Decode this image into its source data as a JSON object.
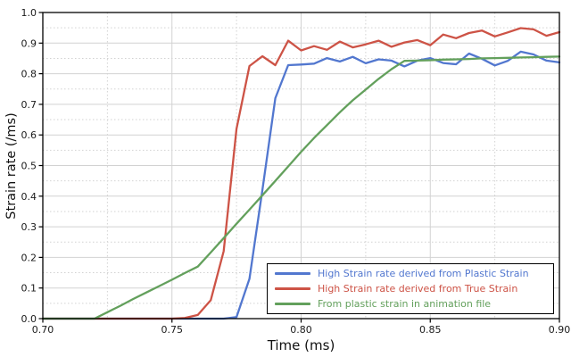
{
  "chart_data": {
    "type": "line",
    "xlabel": "Time (ms)",
    "ylabel": "Strain rate (/ms)",
    "xlim": [
      0.7,
      0.9
    ],
    "ylim": [
      0.0,
      1.0
    ],
    "x_ticks": [
      "0.70",
      "0.75",
      "0.80",
      "0.85",
      "0.90"
    ],
    "x_minor_ticks": [
      0.725,
      0.775,
      0.825,
      0.875
    ],
    "y_ticks": [
      "0.0",
      "0.1",
      "0.2",
      "0.3",
      "0.4",
      "0.5",
      "0.6",
      "0.7",
      "0.8",
      "0.9",
      "1.0"
    ],
    "y_minor_ticks": [
      0.05,
      0.15,
      0.25,
      0.35,
      0.45,
      0.55,
      0.65,
      0.75,
      0.85,
      0.95
    ],
    "grid": "major-solid-minor-dotted",
    "legend_position": "bottom-right",
    "colors": {
      "grid": "#d2d2d2",
      "frame": "#000000",
      "text": "#1a1a1a"
    },
    "series": [
      {
        "name": "High Strain rate derived from Plastic Strain",
        "color": "#5277cf",
        "data": [
          [
            0.7,
            0
          ],
          [
            0.705,
            0
          ],
          [
            0.71,
            0
          ],
          [
            0.715,
            0
          ],
          [
            0.72,
            0
          ],
          [
            0.725,
            0
          ],
          [
            0.73,
            0
          ],
          [
            0.735,
            0
          ],
          [
            0.74,
            0
          ],
          [
            0.745,
            0
          ],
          [
            0.75,
            0
          ],
          [
            0.755,
            0
          ],
          [
            0.76,
            0
          ],
          [
            0.765,
            0
          ],
          [
            0.77,
            0
          ],
          [
            0.775,
            0.005
          ],
          [
            0.78,
            0.13
          ],
          [
            0.785,
            0.42
          ],
          [
            0.79,
            0.72
          ],
          [
            0.795,
            0.828
          ],
          [
            0.8,
            0.83
          ],
          [
            0.805,
            0.833
          ],
          [
            0.81,
            0.851
          ],
          [
            0.815,
            0.84
          ],
          [
            0.82,
            0.855
          ],
          [
            0.825,
            0.834
          ],
          [
            0.83,
            0.847
          ],
          [
            0.835,
            0.843
          ],
          [
            0.84,
            0.824
          ],
          [
            0.845,
            0.843
          ],
          [
            0.85,
            0.851
          ],
          [
            0.855,
            0.835
          ],
          [
            0.86,
            0.831
          ],
          [
            0.865,
            0.866
          ],
          [
            0.87,
            0.849
          ],
          [
            0.875,
            0.827
          ],
          [
            0.88,
            0.842
          ],
          [
            0.885,
            0.872
          ],
          [
            0.89,
            0.863
          ],
          [
            0.895,
            0.843
          ],
          [
            0.9,
            0.837
          ]
        ]
      },
      {
        "name": "High Strain rate derived from True Strain",
        "color": "#cd5346",
        "data": [
          [
            0.7,
            0
          ],
          [
            0.705,
            0
          ],
          [
            0.71,
            0
          ],
          [
            0.715,
            0
          ],
          [
            0.72,
            0
          ],
          [
            0.725,
            0
          ],
          [
            0.73,
            0
          ],
          [
            0.735,
            0
          ],
          [
            0.74,
            0
          ],
          [
            0.745,
            0
          ],
          [
            0.75,
            0
          ],
          [
            0.755,
            0.002
          ],
          [
            0.76,
            0.012
          ],
          [
            0.765,
            0.06
          ],
          [
            0.77,
            0.22
          ],
          [
            0.775,
            0.62
          ],
          [
            0.78,
            0.825
          ],
          [
            0.785,
            0.857
          ],
          [
            0.79,
            0.828
          ],
          [
            0.795,
            0.908
          ],
          [
            0.8,
            0.876
          ],
          [
            0.805,
            0.89
          ],
          [
            0.81,
            0.878
          ],
          [
            0.815,
            0.905
          ],
          [
            0.82,
            0.886
          ],
          [
            0.825,
            0.896
          ],
          [
            0.83,
            0.908
          ],
          [
            0.835,
            0.888
          ],
          [
            0.84,
            0.902
          ],
          [
            0.845,
            0.91
          ],
          [
            0.85,
            0.893
          ],
          [
            0.855,
            0.928
          ],
          [
            0.86,
            0.916
          ],
          [
            0.865,
            0.933
          ],
          [
            0.87,
            0.941
          ],
          [
            0.875,
            0.922
          ],
          [
            0.88,
            0.935
          ],
          [
            0.885,
            0.949
          ],
          [
            0.89,
            0.945
          ],
          [
            0.895,
            0.924
          ],
          [
            0.9,
            0.936
          ]
        ]
      },
      {
        "name": "From plastic strain in animation file",
        "color": "#63a05c",
        "data": [
          [
            0.7,
            0
          ],
          [
            0.705,
            0
          ],
          [
            0.71,
            0
          ],
          [
            0.715,
            0
          ],
          [
            0.72,
            0
          ],
          [
            0.725,
            0.021
          ],
          [
            0.73,
            0.042
          ],
          [
            0.735,
            0.064
          ],
          [
            0.74,
            0.085
          ],
          [
            0.745,
            0.106
          ],
          [
            0.75,
            0.127
          ],
          [
            0.755,
            0.149
          ],
          [
            0.76,
            0.17
          ],
          [
            0.765,
            0.216
          ],
          [
            0.77,
            0.263
          ],
          [
            0.775,
            0.31
          ],
          [
            0.78,
            0.356
          ],
          [
            0.785,
            0.403
          ],
          [
            0.79,
            0.45
          ],
          [
            0.795,
            0.497
          ],
          [
            0.8,
            0.545
          ],
          [
            0.805,
            0.59
          ],
          [
            0.81,
            0.632
          ],
          [
            0.815,
            0.674
          ],
          [
            0.82,
            0.713
          ],
          [
            0.825,
            0.748
          ],
          [
            0.83,
            0.783
          ],
          [
            0.835,
            0.815
          ],
          [
            0.84,
            0.842
          ],
          [
            0.845,
            0.843
          ],
          [
            0.85,
            0.844
          ],
          [
            0.855,
            0.846
          ],
          [
            0.86,
            0.847
          ],
          [
            0.865,
            0.848
          ],
          [
            0.87,
            0.85
          ],
          [
            0.875,
            0.851
          ],
          [
            0.88,
            0.852
          ],
          [
            0.885,
            0.853
          ],
          [
            0.89,
            0.854
          ],
          [
            0.895,
            0.855
          ],
          [
            0.9,
            0.856
          ]
        ]
      }
    ]
  }
}
